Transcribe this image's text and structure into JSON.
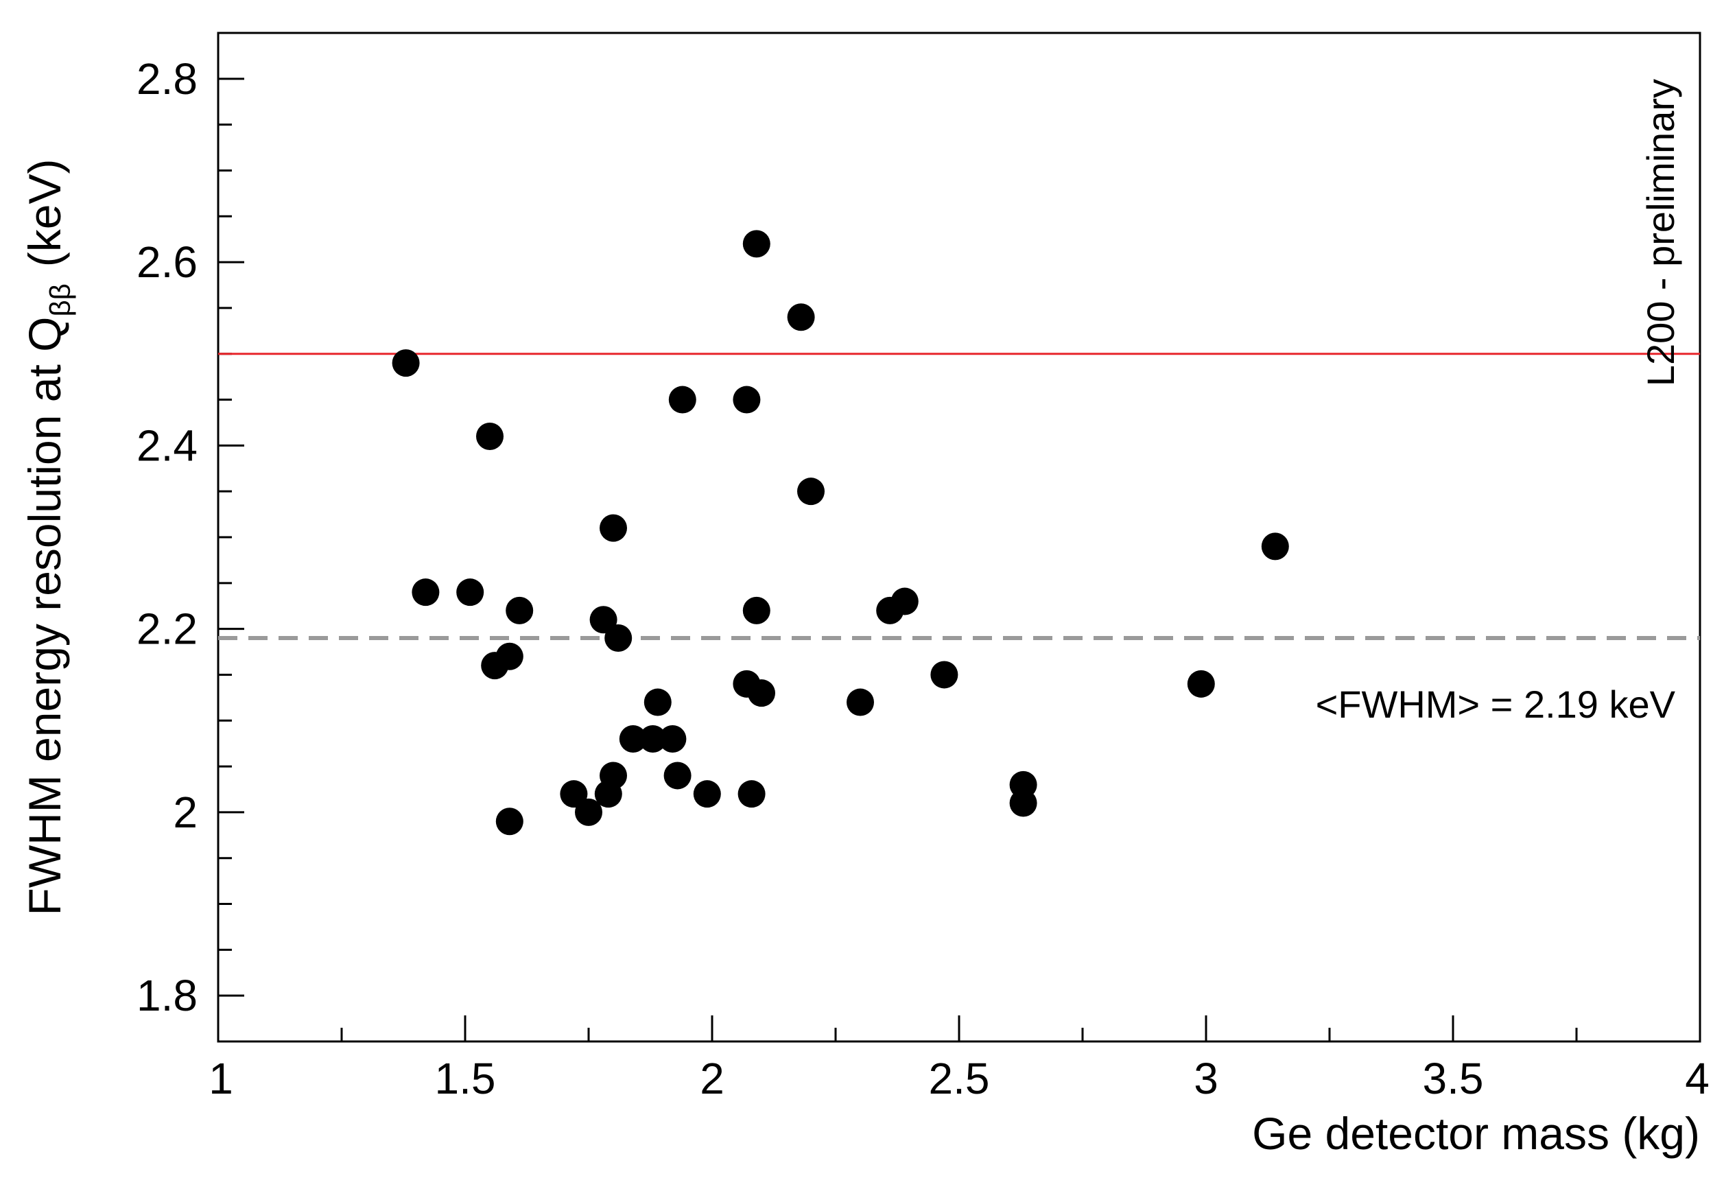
{
  "chart_data": {
    "type": "scatter",
    "xlabel": "Ge detector mass (kg)",
    "ylabel": {
      "main": "FWHM energy resolution at Q",
      "subscript": "ββ",
      "unit": "(keV)"
    },
    "xlim": [
      1,
      4
    ],
    "ylim": [
      1.75,
      2.85
    ],
    "x_ticks": [
      {
        "value": 1,
        "label": "1"
      },
      {
        "value": 1.5,
        "label": "1.5"
      },
      {
        "value": 2,
        "label": "2"
      },
      {
        "value": 2.5,
        "label": "2.5"
      },
      {
        "value": 3,
        "label": "3"
      },
      {
        "value": 3.5,
        "label": "3.5"
      },
      {
        "value": 4,
        "label": "4"
      }
    ],
    "y_ticks": [
      {
        "value": 1.8,
        "label": "1.8"
      },
      {
        "value": 2.0,
        "label": "2"
      },
      {
        "value": 2.2,
        "label": "2.2"
      },
      {
        "value": 2.4,
        "label": "2.4"
      },
      {
        "value": 2.6,
        "label": "2.6"
      },
      {
        "value": 2.8,
        "label": "2.8"
      }
    ],
    "x_minor_step": 0.25,
    "y_minor_step": 0.05,
    "grid": false,
    "reference_lines": [
      {
        "y": 2.5,
        "color": "#e8262b",
        "style": "solid"
      },
      {
        "y": 2.19,
        "color": "#9a9a9a",
        "style": "dashed"
      }
    ],
    "annotations": {
      "mean_label": "<FWHM> = 2.19 keV",
      "status_label": "L200 - preliminary"
    },
    "marker_color": "#000000",
    "points": [
      {
        "x": 1.38,
        "y": 2.49
      },
      {
        "x": 1.42,
        "y": 2.24
      },
      {
        "x": 1.51,
        "y": 2.24
      },
      {
        "x": 1.55,
        "y": 2.41
      },
      {
        "x": 1.56,
        "y": 2.16
      },
      {
        "x": 1.59,
        "y": 2.17
      },
      {
        "x": 1.59,
        "y": 1.99
      },
      {
        "x": 1.61,
        "y": 2.22
      },
      {
        "x": 1.72,
        "y": 2.02
      },
      {
        "x": 1.75,
        "y": 2.0
      },
      {
        "x": 1.78,
        "y": 2.21
      },
      {
        "x": 1.79,
        "y": 2.02
      },
      {
        "x": 1.8,
        "y": 2.31
      },
      {
        "x": 1.8,
        "y": 2.04
      },
      {
        "x": 1.81,
        "y": 2.19
      },
      {
        "x": 1.84,
        "y": 2.08
      },
      {
        "x": 1.88,
        "y": 2.08
      },
      {
        "x": 1.89,
        "y": 2.12
      },
      {
        "x": 1.92,
        "y": 2.08
      },
      {
        "x": 1.93,
        "y": 2.04
      },
      {
        "x": 1.94,
        "y": 2.45
      },
      {
        "x": 1.99,
        "y": 2.02
      },
      {
        "x": 2.07,
        "y": 2.45
      },
      {
        "x": 2.07,
        "y": 2.14
      },
      {
        "x": 2.08,
        "y": 2.02
      },
      {
        "x": 2.09,
        "y": 2.62
      },
      {
        "x": 2.09,
        "y": 2.22
      },
      {
        "x": 2.1,
        "y": 2.13
      },
      {
        "x": 2.18,
        "y": 2.54
      },
      {
        "x": 2.2,
        "y": 2.35
      },
      {
        "x": 2.3,
        "y": 2.12
      },
      {
        "x": 2.36,
        "y": 2.22
      },
      {
        "x": 2.39,
        "y": 2.23
      },
      {
        "x": 2.47,
        "y": 2.15
      },
      {
        "x": 2.63,
        "y": 2.03
      },
      {
        "x": 2.63,
        "y": 2.01
      },
      {
        "x": 2.99,
        "y": 2.14
      },
      {
        "x": 3.14,
        "y": 2.29
      }
    ]
  }
}
